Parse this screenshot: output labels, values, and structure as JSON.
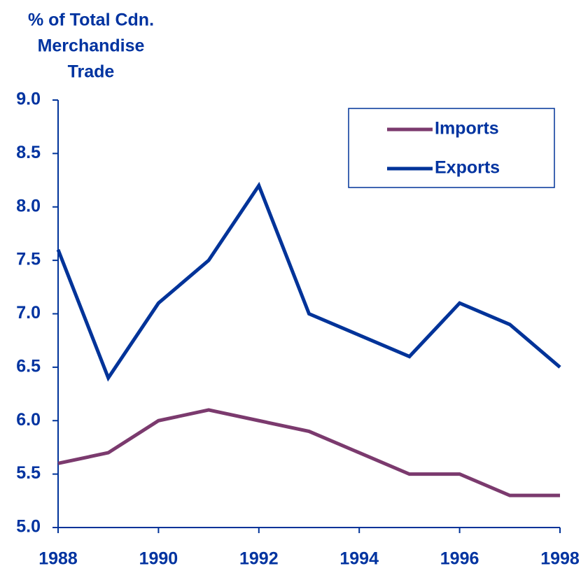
{
  "chart_data": {
    "type": "line",
    "y_label": [
      "% of Total Cdn.",
      "Merchandise",
      "Trade"
    ],
    "x": [
      1988,
      1989,
      1990,
      1991,
      1992,
      1993,
      1994,
      1995,
      1996,
      1997,
      1998
    ],
    "series": [
      {
        "name": "Imports",
        "color": "#7b3a6e",
        "values": [
          5.6,
          5.7,
          6.0,
          6.1,
          6.0,
          5.9,
          5.7,
          5.5,
          5.5,
          5.3,
          5.3
        ]
      },
      {
        "name": "Exports",
        "color": "#003399",
        "values": [
          7.6,
          6.4,
          7.1,
          7.5,
          8.2,
          7.0,
          6.8,
          6.6,
          7.1,
          6.9,
          6.5
        ]
      }
    ],
    "xlim": [
      1988,
      1998
    ],
    "xticks": [
      1988,
      1990,
      1992,
      1994,
      1996,
      1998
    ],
    "ylim": [
      5,
      9
    ],
    "yticks": [
      {
        "value": 5,
        "label": "5.0"
      },
      {
        "value": 5.5,
        "label": "5.5"
      },
      {
        "value": 6,
        "label": "6.0"
      },
      {
        "value": 6.5,
        "label": "6.5"
      },
      {
        "value": 7,
        "label": "7.0"
      },
      {
        "value": 7.5,
        "label": "7.5"
      },
      {
        "value": 8,
        "label": "8.0"
      },
      {
        "value": 8.5,
        "label": "8.5"
      },
      {
        "value": 9,
        "label": "9.0"
      }
    ],
    "legend": "upper right",
    "text_color": "#0033a0",
    "axis_color": "#003399"
  }
}
